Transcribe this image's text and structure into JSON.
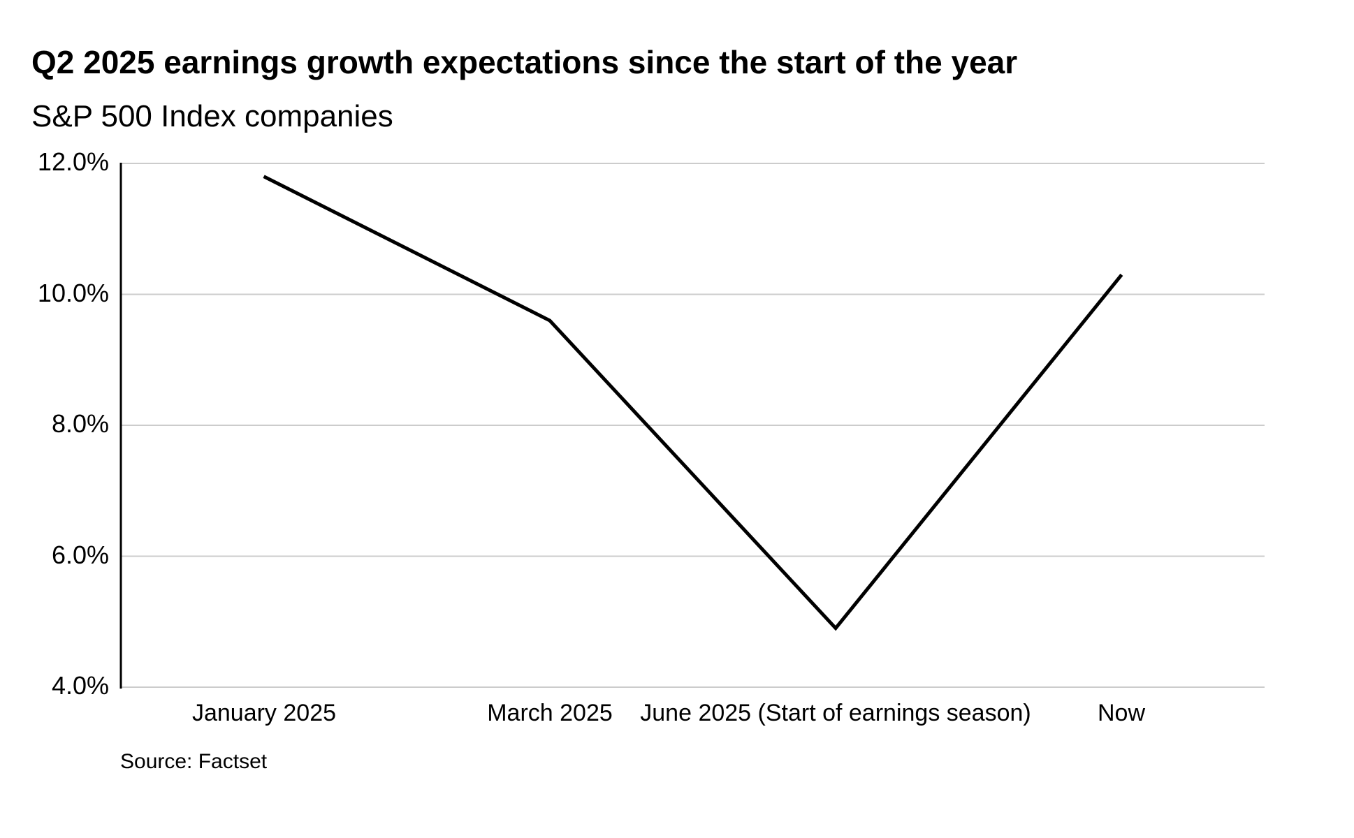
{
  "header": {
    "title": "Q2 2025 earnings growth expectations since the start of the year",
    "subtitle": "S&P 500 Index companies"
  },
  "footer": {
    "source": "Source: Factset"
  },
  "chart_data": {
    "type": "line",
    "title": "Q2 2025 earnings growth expectations since the start of the year",
    "subtitle": "S&P 500 Index companies",
    "categories": [
      "January 2025",
      "March 2025",
      "June 2025 (Start of earnings season)",
      "Now"
    ],
    "series": [
      {
        "name": "Q2 2025 earnings growth expectation",
        "values": [
          11.8,
          9.6,
          4.9,
          10.3
        ]
      }
    ],
    "unit": "%",
    "ylim": [
      4.0,
      12.0
    ],
    "yticks": [
      12.0,
      10.0,
      8.0,
      6.0,
      4.0
    ],
    "ytick_labels": [
      "12.0%",
      "10.0%",
      "8.0%",
      "6.0%",
      "4.0%"
    ],
    "xlabel": "",
    "ylabel": "",
    "grid": "horizontal",
    "legend_position": "none",
    "line_color": "#000000",
    "line_width": 5,
    "gridline_color": "#cccccc",
    "axis_color": "#000000",
    "source": "Source: Factset"
  }
}
